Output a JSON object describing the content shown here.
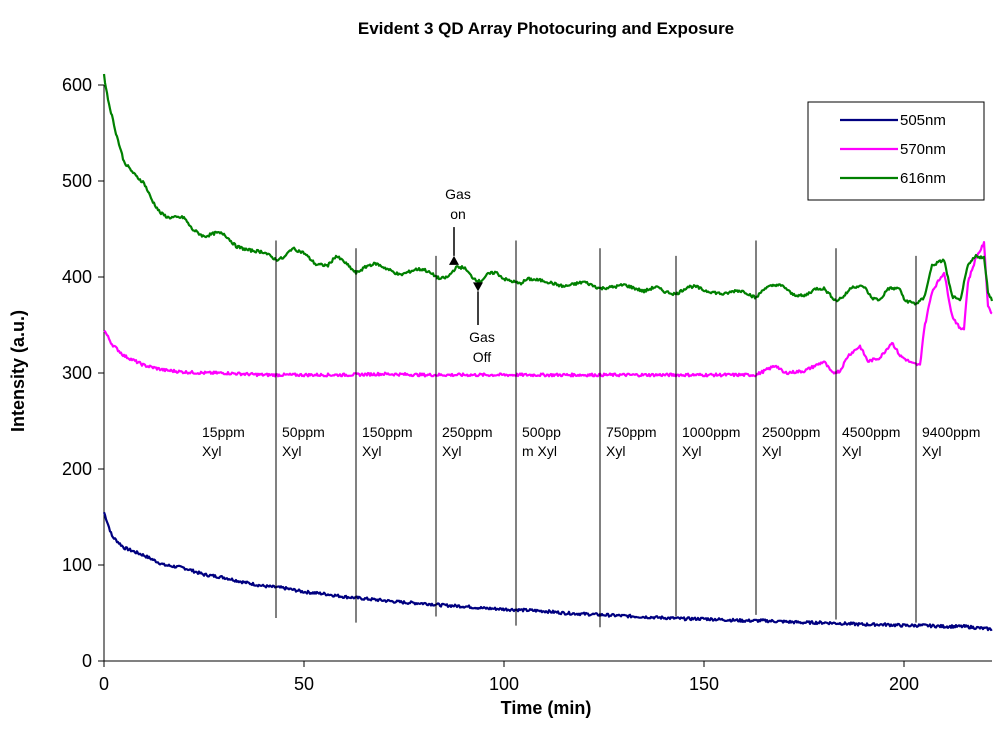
{
  "chart_data": {
    "type": "line",
    "title": "Evident 3 QD Array Photocuring and Exposure",
    "xlabel": "Time (min)",
    "ylabel": "Intensity (a.u.)",
    "xlim": [
      0,
      222
    ],
    "ylim": [
      0,
      600
    ],
    "x_ticks": [
      0,
      50,
      100,
      150,
      200
    ],
    "y_ticks": [
      0,
      100,
      200,
      300,
      400,
      500,
      600
    ],
    "grid": false,
    "legend_position": "top-right",
    "series": [
      {
        "name": "505nm",
        "color": "#000080",
        "points": [
          [
            0,
            155
          ],
          [
            2,
            130
          ],
          [
            5,
            118
          ],
          [
            10,
            110
          ],
          [
            15,
            100
          ],
          [
            20,
            97
          ],
          [
            25,
            90
          ],
          [
            30,
            87
          ],
          [
            35,
            82
          ],
          [
            40,
            78
          ],
          [
            45,
            76
          ],
          [
            50,
            72
          ],
          [
            55,
            70
          ],
          [
            60,
            67
          ],
          [
            65,
            65
          ],
          [
            70,
            63
          ],
          [
            75,
            61
          ],
          [
            80,
            60
          ],
          [
            85,
            58
          ],
          [
            90,
            57
          ],
          [
            95,
            55
          ],
          [
            100,
            54
          ],
          [
            105,
            53
          ],
          [
            110,
            52
          ],
          [
            115,
            50
          ],
          [
            120,
            49
          ],
          [
            125,
            48
          ],
          [
            130,
            47
          ],
          [
            135,
            46
          ],
          [
            140,
            45
          ],
          [
            145,
            44
          ],
          [
            150,
            44
          ],
          [
            155,
            43
          ],
          [
            160,
            42
          ],
          [
            165,
            42
          ],
          [
            170,
            41
          ],
          [
            175,
            40
          ],
          [
            180,
            40
          ],
          [
            185,
            39
          ],
          [
            190,
            38
          ],
          [
            195,
            38
          ],
          [
            200,
            37
          ],
          [
            205,
            37
          ],
          [
            210,
            36
          ],
          [
            215,
            36
          ],
          [
            222,
            33
          ]
        ]
      },
      {
        "name": "570nm",
        "color": "#ff00ff",
        "points": [
          [
            0,
            345
          ],
          [
            2,
            330
          ],
          [
            5,
            318
          ],
          [
            10,
            308
          ],
          [
            15,
            303
          ],
          [
            20,
            301
          ],
          [
            25,
            300
          ],
          [
            30,
            300
          ],
          [
            40,
            298
          ],
          [
            50,
            298
          ],
          [
            60,
            298
          ],
          [
            70,
            299
          ],
          [
            80,
            298
          ],
          [
            90,
            298
          ],
          [
            100,
            298
          ],
          [
            110,
            298
          ],
          [
            120,
            298
          ],
          [
            130,
            298
          ],
          [
            140,
            298
          ],
          [
            150,
            298
          ],
          [
            160,
            298
          ],
          [
            163,
            298
          ],
          [
            165,
            302
          ],
          [
            168,
            308
          ],
          [
            170,
            300
          ],
          [
            175,
            302
          ],
          [
            180,
            312
          ],
          [
            182,
            300
          ],
          [
            184,
            302
          ],
          [
            186,
            318
          ],
          [
            189,
            328
          ],
          [
            191,
            312
          ],
          [
            194,
            316
          ],
          [
            197,
            332
          ],
          [
            199,
            318
          ],
          [
            202,
            310
          ],
          [
            204,
            308
          ],
          [
            205,
            345
          ],
          [
            207,
            385
          ],
          [
            210,
            405
          ],
          [
            212,
            360
          ],
          [
            214,
            346
          ],
          [
            215,
            347
          ],
          [
            216,
            395
          ],
          [
            218,
            420
          ],
          [
            220,
            435
          ],
          [
            221,
            370
          ],
          [
            222,
            362
          ]
        ]
      },
      {
        "name": "616nm",
        "color": "#008000",
        "points": [
          [
            0,
            610
          ],
          [
            1,
            585
          ],
          [
            3,
            550
          ],
          [
            5,
            520
          ],
          [
            8,
            505
          ],
          [
            10,
            498
          ],
          [
            12,
            480
          ],
          [
            14,
            467
          ],
          [
            16,
            462
          ],
          [
            20,
            462
          ],
          [
            22,
            450
          ],
          [
            25,
            442
          ],
          [
            28,
            446
          ],
          [
            30,
            445
          ],
          [
            33,
            432
          ],
          [
            36,
            428
          ],
          [
            40,
            426
          ],
          [
            43,
            418
          ],
          [
            45,
            420
          ],
          [
            47,
            430
          ],
          [
            50,
            425
          ],
          [
            53,
            413
          ],
          [
            56,
            412
          ],
          [
            58,
            422
          ],
          [
            60,
            416
          ],
          [
            63,
            404
          ],
          [
            66,
            412
          ],
          [
            68,
            414
          ],
          [
            70,
            410
          ],
          [
            74,
            402
          ],
          [
            78,
            408
          ],
          [
            80,
            408
          ],
          [
            84,
            398
          ],
          [
            86,
            400
          ],
          [
            88,
            410
          ],
          [
            90,
            410
          ],
          [
            92,
            400
          ],
          [
            94,
            395
          ],
          [
            96,
            403
          ],
          [
            98,
            405
          ],
          [
            100,
            398
          ],
          [
            104,
            393
          ],
          [
            106,
            398
          ],
          [
            110,
            396
          ],
          [
            115,
            390
          ],
          [
            118,
            393
          ],
          [
            120,
            395
          ],
          [
            124,
            388
          ],
          [
            128,
            390
          ],
          [
            130,
            392
          ],
          [
            135,
            385
          ],
          [
            138,
            390
          ],
          [
            140,
            385
          ],
          [
            143,
            382
          ],
          [
            146,
            390
          ],
          [
            148,
            390
          ],
          [
            150,
            386
          ],
          [
            155,
            382
          ],
          [
            158,
            386
          ],
          [
            160,
            385
          ],
          [
            163,
            378
          ],
          [
            165,
            388
          ],
          [
            168,
            392
          ],
          [
            170,
            390
          ],
          [
            172,
            382
          ],
          [
            175,
            380
          ],
          [
            178,
            388
          ],
          [
            180,
            388
          ],
          [
            183,
            375
          ],
          [
            185,
            380
          ],
          [
            187,
            390
          ],
          [
            190,
            390
          ],
          [
            192,
            378
          ],
          [
            194,
            376
          ],
          [
            196,
            388
          ],
          [
            199,
            388
          ],
          [
            200,
            376
          ],
          [
            203,
            372
          ],
          [
            205,
            378
          ],
          [
            207,
            412
          ],
          [
            210,
            418
          ],
          [
            212,
            380
          ],
          [
            214,
            375
          ],
          [
            216,
            412
          ],
          [
            218,
            422
          ],
          [
            220,
            420
          ],
          [
            221,
            385
          ],
          [
            222,
            375
          ]
        ]
      }
    ],
    "phase_lines": [
      43,
      63,
      83,
      103,
      124,
      143,
      163,
      183,
      203
    ],
    "phase_line_label_anchor": [
      28,
      25,
      29,
      23,
      22,
      29,
      30,
      27,
      25
    ],
    "phase_labels": [
      {
        "x": 24,
        "lines": [
          "15ppm",
          "Xyl"
        ]
      },
      {
        "x": 44,
        "lines": [
          "50ppm",
          "Xyl"
        ]
      },
      {
        "x": 64,
        "lines": [
          "150ppm",
          "Xyl"
        ]
      },
      {
        "x": 84,
        "lines": [
          "250ppm",
          "Xyl"
        ]
      },
      {
        "x": 104,
        "lines": [
          "500pp",
          "m Xyl"
        ]
      },
      {
        "x": 125,
        "lines": [
          "750ppm",
          "Xyl"
        ]
      },
      {
        "x": 144,
        "lines": [
          "1000ppm",
          "Xyl"
        ]
      },
      {
        "x": 164,
        "lines": [
          "2500ppm",
          "Xyl"
        ]
      },
      {
        "x": 184,
        "lines": [
          "4500ppm",
          "Xyl"
        ]
      },
      {
        "x": 204,
        "lines": [
          "9400ppm",
          "Xyl"
        ]
      }
    ],
    "annotations": [
      {
        "id": "gas-on",
        "lines": [
          "Gas",
          "on"
        ],
        "arrow_x": 87.5,
        "direction": "down",
        "arrow_from": 452,
        "arrow_to": 422
      },
      {
        "id": "gas-off",
        "lines": [
          "Gas",
          "Off"
        ],
        "arrow_x": 93.5,
        "direction": "up",
        "arrow_from": 350,
        "arrow_to": 385
      }
    ]
  }
}
